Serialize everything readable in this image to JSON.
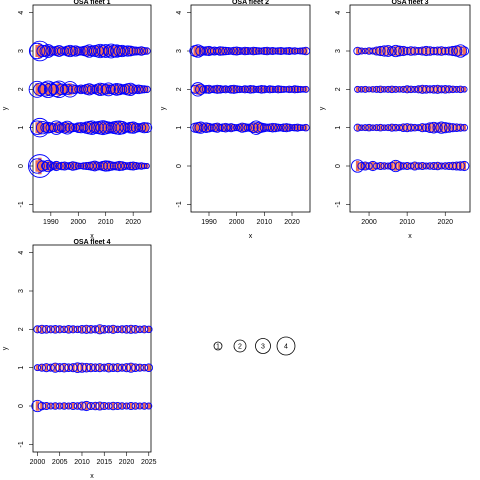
{
  "chart_data": [
    {
      "type": "scatter",
      "title": "OSA fleet 1",
      "xlabel": "x",
      "ylabel": "y",
      "xlim": [
        1983.5,
        2026.5
      ],
      "ylim": [
        -1.2,
        4.2
      ],
      "xticks": [
        1990,
        2000,
        2010,
        2020
      ],
      "yticks": [
        -1,
        0,
        1,
        2,
        3,
        4
      ],
      "year_range": [
        1985,
        2025
      ],
      "rows": [
        {
          "y": 0,
          "observed": [
            2.2,
            3.8,
            1.4,
            0.9,
            1.6,
            1.1,
            0.8,
            1.2,
            0.6,
            0.9,
            1.0,
            0.7,
            0.8,
            1.1,
            0.9,
            0.6,
            0.5,
            0.7,
            0.8,
            0.9,
            1.1,
            1.3,
            1.0,
            0.9,
            1.2,
            1.4,
            1.3,
            1.1,
            0.9,
            1.0,
            1.2,
            1.1,
            0.8,
            0.7,
            0.9,
            1.0,
            0.8,
            0.6,
            0.7,
            0.5,
            0.4
          ]
        },
        {
          "y": 1,
          "observed": [
            2.0,
            3.0,
            1.8,
            1.2,
            1.5,
            1.3,
            1.0,
            2.0,
            1.4,
            1.1,
            1.5,
            1.9,
            1.2,
            1.0,
            0.9,
            1.3,
            1.4,
            1.1,
            1.6,
            1.8,
            2.0,
            1.5,
            1.7,
            1.9,
            2.1,
            1.8,
            1.6,
            1.4,
            1.7,
            1.9,
            2.0,
            1.8,
            1.3,
            1.1,
            1.5,
            1.6,
            1.2,
            1.0,
            1.1,
            1.4,
            1.3
          ]
        },
        {
          "y": 2,
          "observed": [
            2.5,
            1.8,
            1.2,
            2.0,
            2.6,
            1.9,
            1.3,
            2.2,
            2.6,
            1.5,
            1.1,
            1.4,
            2.4,
            1.2,
            1.0,
            0.8,
            1.1,
            0.9,
            1.3,
            1.6,
            1.2,
            1.0,
            1.4,
            1.8,
            1.6,
            1.3,
            1.9,
            1.1,
            1.4,
            1.7,
            1.5,
            1.2,
            1.3,
            1.6,
            1.8,
            1.2,
            1.0,
            1.1,
            0.9,
            0.8,
            0.7
          ]
        },
        {
          "y": 3,
          "observed": [
            2.4,
            3.2,
            1.6,
            1.5,
            1.9,
            1.3,
            1.0,
            1.2,
            1.5,
            1.1,
            0.9,
            1.3,
            1.6,
            1.2,
            1.4,
            1.1,
            1.0,
            1.2,
            1.4,
            1.8,
            1.3,
            1.5,
            1.7,
            2.0,
            1.6,
            1.9,
            1.4,
            2.1,
            1.7,
            1.8,
            1.5,
            1.6,
            1.2,
            1.4,
            1.3,
            1.1,
            1.0,
            0.9,
            1.1,
            0.8,
            0.7
          ]
        }
      ]
    },
    {
      "type": "scatter",
      "title": "OSA fleet 2",
      "xlabel": "x",
      "ylabel": "y",
      "xlim": [
        1983.5,
        2026.5
      ],
      "ylim": [
        -1.2,
        4.2
      ],
      "xticks": [
        1990,
        2000,
        2010,
        2020
      ],
      "yticks": [
        -1,
        0,
        1,
        2,
        3,
        4
      ],
      "year_range": [
        1985,
        2025
      ],
      "rows": [
        {
          "y": 1,
          "observed": [
            1.2,
            1.4,
            1.6,
            0.9,
            1.3,
            1.1,
            0.8,
            1.0,
            1.2,
            0.7,
            0.9,
            1.1,
            0.8,
            1.0,
            0.7,
            0.6,
            0.8,
            1.2,
            1.0,
            0.8,
            0.9,
            1.3,
            2.0,
            1.5,
            1.2,
            1.0,
            0.8,
            0.9,
            1.1,
            1.0,
            0.8,
            0.7,
            0.9,
            1.0,
            0.8,
            0.6,
            0.7,
            0.8,
            0.6,
            0.5,
            0.7
          ]
        },
        {
          "y": 2,
          "observed": [
            1.0,
            2.0,
            1.4,
            0.8,
            0.9,
            1.0,
            0.7,
            0.8,
            1.0,
            0.9,
            0.7,
            0.8,
            0.6,
            0.9,
            1.0,
            0.8,
            0.7,
            0.6,
            0.8,
            0.7,
            0.9,
            0.8,
            0.6,
            0.7,
            0.9,
            0.8,
            0.6,
            0.8,
            0.7,
            0.6,
            0.8,
            0.7,
            0.6,
            0.5,
            0.7,
            0.6,
            0.8,
            0.7,
            0.6,
            0.5,
            0.6
          ]
        },
        {
          "y": 3,
          "observed": [
            1.5,
            1.8,
            1.3,
            1.0,
            1.1,
            1.2,
            0.9,
            1.0,
            0.8,
            1.1,
            1.0,
            0.9,
            0.8,
            0.7,
            0.9,
            1.0,
            0.8,
            0.7,
            0.9,
            0.8,
            0.7,
            0.9,
            0.8,
            0.7,
            0.6,
            0.8,
            0.9,
            0.7,
            0.8,
            0.6,
            0.7,
            0.8,
            0.6,
            0.7,
            0.8,
            0.6,
            0.7,
            0.5,
            0.6,
            0.7,
            0.9
          ]
        }
      ]
    },
    {
      "type": "scatter",
      "title": "OSA fleet 3",
      "xlabel": "x",
      "ylabel": "y",
      "xlim": [
        1995,
        2026.5
      ],
      "ylim": [
        -1.2,
        4.2
      ],
      "xticks": [
        2000,
        2010,
        2020
      ],
      "yticks": [
        -1,
        0,
        1,
        2,
        3,
        4
      ],
      "year_range": [
        1997,
        2025
      ],
      "rows": [
        {
          "y": 0,
          "observed": [
            1.8,
            0.8,
            1.0,
            0.7,
            1.2,
            0.6,
            0.8,
            0.7,
            0.6,
            0.9,
            1.6,
            1.0,
            0.7,
            0.8,
            0.6,
            1.0,
            0.7,
            0.8,
            0.6,
            0.7,
            0.8,
            0.9,
            0.6,
            0.7,
            0.8,
            0.9,
            1.0,
            1.1,
            1.2
          ]
        },
        {
          "y": 1,
          "observed": [
            0.8,
            0.5,
            0.6,
            0.7,
            0.5,
            0.6,
            0.7,
            0.5,
            0.6,
            0.8,
            0.7,
            0.6,
            0.9,
            1.0,
            0.8,
            0.7,
            0.6,
            1.0,
            0.9,
            1.3,
            1.5,
            1.2,
            1.6,
            1.4,
            1.2,
            1.0,
            0.9,
            0.8,
            0.7
          ]
        },
        {
          "y": 2,
          "observed": [
            0.6,
            0.5,
            0.6,
            0.4,
            0.5,
            0.6,
            0.7,
            0.5,
            0.6,
            0.7,
            0.6,
            0.5,
            0.6,
            0.8,
            0.7,
            0.6,
            0.8,
            1.0,
            0.9,
            0.8,
            0.9,
            1.0,
            0.8,
            0.9,
            0.8,
            0.7,
            0.6,
            0.7,
            0.5
          ]
        },
        {
          "y": 3,
          "observed": [
            0.9,
            0.6,
            0.5,
            0.7,
            0.6,
            1.0,
            1.2,
            1.4,
            1.5,
            1.1,
            1.6,
            1.3,
            1.2,
            0.9,
            1.1,
            1.0,
            0.8,
            1.0,
            1.2,
            1.1,
            0.9,
            1.0,
            1.1,
            0.9,
            1.0,
            1.2,
            1.4,
            1.8,
            1.1
          ]
        }
      ]
    },
    {
      "type": "scatter",
      "title": "OSA fleet 4",
      "xlabel": "x",
      "ylabel": "y",
      "xlim": [
        1999,
        2025.5
      ],
      "ylim": [
        -1.2,
        4.2
      ],
      "xticks": [
        2000,
        2005,
        2010,
        2015,
        2020,
        2025
      ],
      "yticks": [
        -1,
        0,
        1,
        2,
        3,
        4
      ],
      "year_range": [
        2000,
        2025
      ],
      "rows": [
        {
          "y": 0,
          "observed": [
            1.6,
            0.9,
            0.8,
            0.6,
            0.7,
            0.6,
            0.7,
            0.6,
            0.8,
            0.7,
            1.0,
            1.2,
            0.8,
            0.9,
            1.0,
            0.8,
            0.7,
            0.9,
            0.8,
            0.7,
            0.6,
            0.8,
            0.7,
            0.6,
            0.7,
            0.6
          ]
        },
        {
          "y": 1,
          "observed": [
            0.6,
            0.8,
            1.0,
            0.8,
            1.2,
            1.0,
            1.1,
            0.9,
            1.0,
            1.3,
            1.2,
            1.1,
            1.0,
            0.9,
            1.0,
            0.8,
            1.1,
            0.9,
            1.0,
            0.8,
            1.0,
            1.2,
            0.9,
            0.8,
            0.7,
            0.9
          ]
        },
        {
          "y": 2,
          "observed": [
            0.8,
            1.0,
            0.9,
            0.8,
            0.9,
            0.8,
            0.7,
            0.9,
            0.8,
            0.7,
            0.9,
            1.0,
            0.9,
            0.8,
            1.2,
            0.9,
            0.8,
            1.0,
            0.7,
            0.8,
            0.9,
            1.0,
            0.9,
            0.7,
            0.8,
            0.7
          ]
        }
      ]
    }
  ],
  "size_legend": [
    "1",
    "2",
    "3",
    "4"
  ],
  "colors": {
    "observed_circle": "#0000ff",
    "predicted_band": "#ee6f57",
    "axis": "#000000"
  }
}
